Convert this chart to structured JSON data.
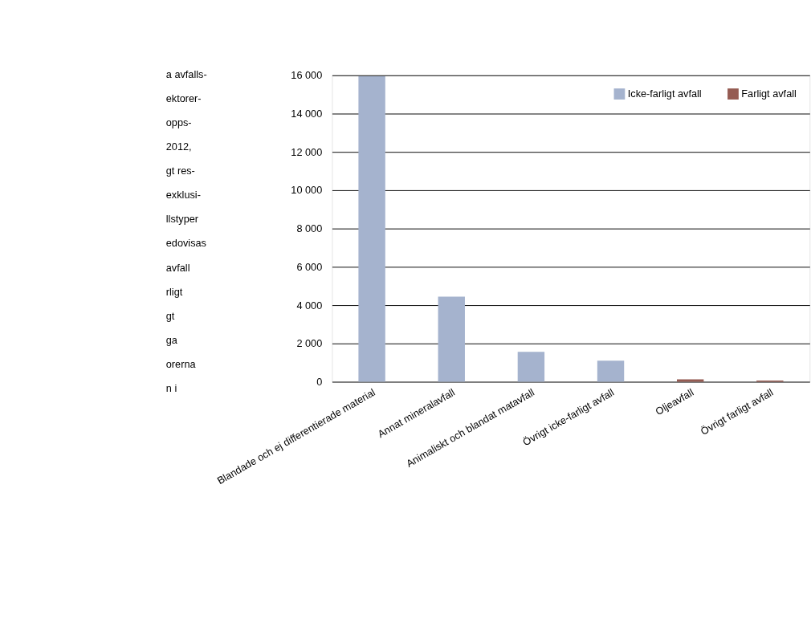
{
  "chart_data": {
    "type": "bar",
    "categories": [
      "Blandade och ej differentierade material",
      "Annat mineralavfall",
      "Animaliskt och blandat matavfall",
      "Övrigt icke-farligt avfall",
      "Oljeavfall",
      "Övrigt farligt avfall"
    ],
    "series": [
      {
        "name": "Icke-farligt avfall",
        "color": "#a5b3ce",
        "values": [
          15950,
          4450,
          1570,
          1100,
          null,
          null
        ]
      },
      {
        "name": "Farligt avfall",
        "color": "#955b52",
        "values": [
          null,
          null,
          null,
          null,
          130,
          70
        ]
      }
    ],
    "ylim": [
      0,
      16000
    ],
    "yticks": [
      {
        "value": 0,
        "label": "0"
      },
      {
        "value": 2000,
        "label": "2 000"
      },
      {
        "value": 4000,
        "label": "4 000"
      },
      {
        "value": 6000,
        "label": "6 000"
      },
      {
        "value": 8000,
        "label": "8 000"
      },
      {
        "value": 10000,
        "label": "10 000"
      },
      {
        "value": 12000,
        "label": "12 000"
      },
      {
        "value": 14000,
        "label": "14 000"
      },
      {
        "value": 16000,
        "label": "16 000"
      }
    ],
    "grid": "y",
    "legend": "top right",
    "annotations": [
      "a avfalls-",
      "ektorer-",
      "opps-",
      "2012,",
      "gt res-",
      "exklusi-",
      "llstyper",
      "edovisas",
      "avfall",
      "rligt",
      "gt",
      "ga",
      "orerna",
      "n i"
    ]
  }
}
